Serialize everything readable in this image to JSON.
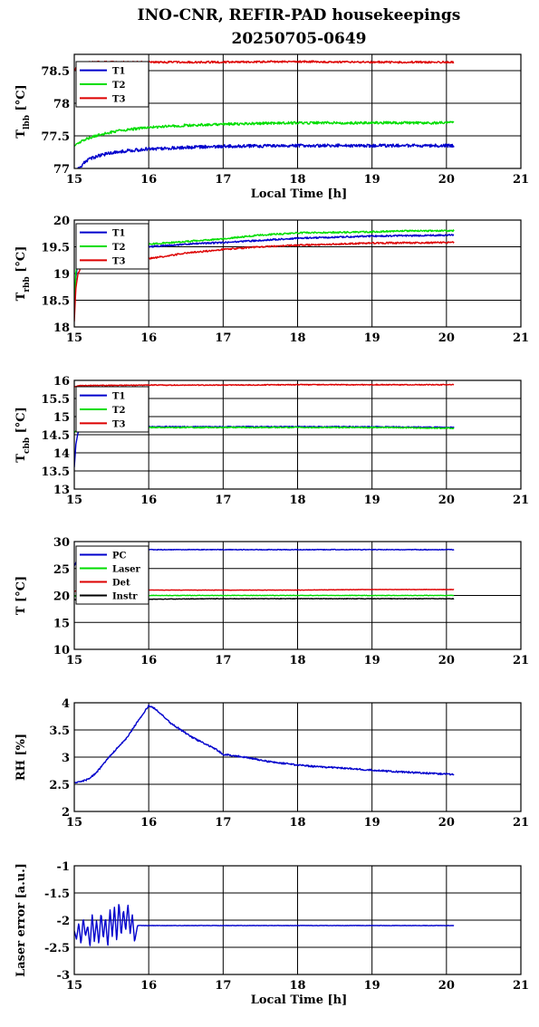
{
  "figure": {
    "title": [
      "INO-CNR, REFIR-PAD housekeepings",
      "20250705-0649"
    ]
  },
  "colors": {
    "blue": "#0000cc",
    "green": "#00dd00",
    "red": "#dd0000",
    "black": "#000000"
  },
  "chart_data": [
    {
      "type": "line",
      "ylabel": "T_lbb [°C]",
      "xlabel": "Local Time [h]",
      "xlim": [
        15,
        21
      ],
      "ylim": [
        77,
        78.75
      ],
      "xticks": [
        "15",
        "16",
        "17",
        "18",
        "19",
        "20",
        "21"
      ],
      "yticks": [
        "77",
        "77.5",
        "78",
        "78.5"
      ],
      "ytick_values": [
        77,
        77.5,
        78,
        78.5
      ],
      "grid": true,
      "legend": "top-left",
      "series": [
        {
          "name": "T1",
          "color": "#0000cc",
          "noise": 0.025,
          "x": [
            15.0,
            15.1,
            15.2,
            15.35,
            15.5,
            15.7,
            16.0,
            16.5,
            17.0,
            18.0,
            19.0,
            20.1
          ],
          "y": [
            76.95,
            77.05,
            77.15,
            77.2,
            77.24,
            77.27,
            77.3,
            77.32,
            77.34,
            77.35,
            77.35,
            77.35
          ]
        },
        {
          "name": "T2",
          "color": "#00dd00",
          "noise": 0.02,
          "x": [
            15.0,
            15.15,
            15.35,
            15.6,
            16.0,
            16.5,
            17.0,
            18.0,
            19.0,
            20.1
          ],
          "y": [
            77.35,
            77.45,
            77.52,
            77.58,
            77.63,
            77.66,
            77.68,
            77.7,
            77.7,
            77.7
          ]
        },
        {
          "name": "T3",
          "color": "#dd0000",
          "noise": 0.015,
          "x": [
            15.0,
            15.05,
            15.3,
            16.0,
            17.0,
            18.0,
            19.0,
            20.1
          ],
          "y": [
            78.5,
            78.62,
            78.63,
            78.63,
            78.63,
            78.64,
            78.63,
            78.63
          ]
        }
      ]
    },
    {
      "type": "line",
      "ylabel": "T_rbb [°C]",
      "xlabel": "",
      "xlim": [
        15,
        21
      ],
      "ylim": [
        18,
        20
      ],
      "xticks": [
        "15",
        "16",
        "17",
        "18",
        "19",
        "20",
        "21"
      ],
      "yticks": [
        "18",
        "18.5",
        "19",
        "19.5",
        "20"
      ],
      "ytick_values": [
        18,
        18.5,
        19,
        19.5,
        20
      ],
      "grid": true,
      "legend": "top-left",
      "series": [
        {
          "name": "T1",
          "color": "#0000cc",
          "noise": 0.015,
          "x": [
            15.0,
            15.02,
            15.05,
            15.1,
            15.2,
            15.5,
            16.0,
            16.5,
            17.0,
            17.5,
            18.0,
            19.0,
            20.1
          ],
          "y": [
            18.3,
            18.9,
            19.25,
            19.38,
            19.42,
            19.45,
            19.5,
            19.55,
            19.58,
            19.62,
            19.66,
            19.7,
            19.72
          ]
        },
        {
          "name": "T2",
          "color": "#00dd00",
          "noise": 0.015,
          "x": [
            15.0,
            15.02,
            15.05,
            15.1,
            15.2,
            15.5,
            16.0,
            16.5,
            17.0,
            17.5,
            18.0,
            19.0,
            19.5,
            20.1
          ],
          "y": [
            18.3,
            19.0,
            19.3,
            19.4,
            19.45,
            19.48,
            19.55,
            19.6,
            19.65,
            19.72,
            19.76,
            19.78,
            19.8,
            19.8
          ]
        },
        {
          "name": "T3",
          "color": "#dd0000",
          "noise": 0.015,
          "x": [
            15.0,
            15.02,
            15.05,
            15.1,
            15.2,
            15.5,
            15.9,
            16.0,
            16.5,
            17.0,
            17.5,
            18.0,
            19.0,
            20.1
          ],
          "y": [
            18.1,
            18.7,
            19.0,
            19.15,
            19.2,
            19.25,
            19.2,
            19.28,
            19.38,
            19.45,
            19.5,
            19.53,
            19.57,
            19.58
          ]
        }
      ]
    },
    {
      "type": "line",
      "ylabel": "T_cbb [°C]",
      "xlabel": "",
      "xlim": [
        15,
        21
      ],
      "ylim": [
        13,
        16
      ],
      "xticks": [
        "15",
        "16",
        "17",
        "18",
        "19",
        "20",
        "21"
      ],
      "yticks": [
        "13",
        "13.5",
        "14",
        "14.5",
        "15",
        "15.5",
        "16"
      ],
      "ytick_values": [
        13,
        13.5,
        14,
        14.5,
        15,
        15.5,
        16
      ],
      "grid": true,
      "legend": "top-left",
      "series": [
        {
          "name": "T1",
          "color": "#0000cc",
          "noise": 0.015,
          "x": [
            15.0,
            15.02,
            15.05,
            15.1,
            15.3,
            16.0,
            17.0,
            18.0,
            19.0,
            20.1
          ],
          "y": [
            13.6,
            14.2,
            14.55,
            14.68,
            14.7,
            14.72,
            14.72,
            14.72,
            14.72,
            14.7
          ]
        },
        {
          "name": "T2",
          "color": "#00dd00",
          "noise": 0.015,
          "x": [
            15.0,
            15.05,
            15.1,
            15.3,
            16.0,
            17.0,
            18.0,
            19.0,
            20.1
          ],
          "y": [
            14.55,
            14.65,
            14.7,
            14.7,
            14.7,
            14.7,
            14.7,
            14.7,
            14.68
          ]
        },
        {
          "name": "T3",
          "color": "#dd0000",
          "noise": 0.012,
          "x": [
            15.0,
            15.1,
            15.5,
            16.0,
            17.0,
            18.0,
            19.0,
            20.1
          ],
          "y": [
            15.82,
            15.86,
            15.86,
            15.87,
            15.87,
            15.88,
            15.88,
            15.88
          ]
        }
      ]
    },
    {
      "type": "line",
      "ylabel": "T [°C]",
      "xlabel": "",
      "xlim": [
        15,
        21
      ],
      "ylim": [
        10,
        30
      ],
      "xticks": [
        "15",
        "16",
        "17",
        "18",
        "19",
        "20",
        "21"
      ],
      "yticks": [
        "10",
        "15",
        "20",
        "25",
        "30"
      ],
      "ytick_values": [
        10,
        15,
        20,
        25,
        30
      ],
      "grid": true,
      "legend": "top-left",
      "series": [
        {
          "name": "PC",
          "color": "#0000cc",
          "noise": 0.06,
          "x": [
            15.0,
            15.05,
            15.2,
            15.5,
            16.0,
            17.0,
            18.0,
            19.0,
            20.1
          ],
          "y": [
            25.5,
            27.0,
            28.0,
            28.4,
            28.5,
            28.5,
            28.5,
            28.5,
            28.5
          ]
        },
        {
          "name": "Laser",
          "color": "#00dd00",
          "noise": 0.05,
          "x": [
            15.0,
            15.5,
            16.0,
            17.0,
            18.0,
            19.0,
            20.1
          ],
          "y": [
            19.9,
            20.0,
            20.0,
            20.0,
            20.0,
            20.0,
            20.0
          ]
        },
        {
          "name": "Det",
          "color": "#dd0000",
          "noise": 0.04,
          "x": [
            15.0,
            15.5,
            16.0,
            17.0,
            18.0,
            19.0,
            20.1
          ],
          "y": [
            20.8,
            20.9,
            21.0,
            21.0,
            21.0,
            21.1,
            21.1
          ]
        },
        {
          "name": "Instr",
          "color": "#000000",
          "noise": 0.05,
          "x": [
            15.0,
            15.5,
            16.0,
            17.0,
            18.0,
            19.0,
            20.1
          ],
          "y": [
            19.2,
            19.3,
            19.3,
            19.4,
            19.4,
            19.4,
            19.4
          ]
        }
      ]
    },
    {
      "type": "line",
      "ylabel": "RH [%]",
      "xlabel": "",
      "xlim": [
        15,
        21
      ],
      "ylim": [
        2,
        4
      ],
      "xticks": [
        "15",
        "16",
        "17",
        "18",
        "19",
        "20",
        "21"
      ],
      "yticks": [
        "2",
        "2.5",
        "3",
        "3.5",
        "4"
      ],
      "ytick_values": [
        2,
        2.5,
        3,
        3.5,
        4
      ],
      "grid": true,
      "legend": "none",
      "series": [
        {
          "color": "#0000cc",
          "noise": 0.015,
          "x": [
            15.0,
            15.1,
            15.2,
            15.3,
            15.5,
            15.7,
            15.85,
            16.0,
            16.1,
            16.3,
            16.6,
            16.9,
            17.0,
            17.3,
            17.6,
            17.9,
            18.2,
            18.6,
            19.0,
            19.5,
            20.1
          ],
          "y": [
            2.53,
            2.55,
            2.6,
            2.72,
            3.05,
            3.35,
            3.65,
            3.95,
            3.88,
            3.62,
            3.35,
            3.15,
            3.05,
            3.0,
            2.92,
            2.87,
            2.83,
            2.8,
            2.76,
            2.72,
            2.68
          ]
        }
      ]
    },
    {
      "type": "line",
      "ylabel": "Laser error [a.u.]",
      "xlabel": "Local Time [h]",
      "xlim": [
        15,
        21
      ],
      "ylim": [
        -3,
        -1
      ],
      "xticks": [
        "15",
        "16",
        "17",
        "18",
        "19",
        "20",
        "21"
      ],
      "yticks": [
        "-3",
        "-2.5",
        "-2",
        "-1.5",
        "-1"
      ],
      "ytick_values": [
        -3,
        -2.5,
        -2,
        -1.5,
        -1
      ],
      "grid": true,
      "legend": "none",
      "series": [
        {
          "color": "#0000cc",
          "noise": 0.004,
          "x": [
            15.0,
            15.03,
            15.06,
            15.09,
            15.12,
            15.15,
            15.18,
            15.21,
            15.24,
            15.27,
            15.3,
            15.33,
            15.36,
            15.39,
            15.42,
            15.45,
            15.48,
            15.51,
            15.54,
            15.57,
            15.6,
            15.63,
            15.66,
            15.69,
            15.72,
            15.75,
            15.78,
            15.81,
            15.85,
            16.0,
            17.0,
            18.0,
            19.0,
            20.1
          ],
          "y": [
            -2.2,
            -2.35,
            -2.05,
            -2.45,
            -1.95,
            -2.3,
            -2.1,
            -2.5,
            -1.9,
            -2.4,
            -2.0,
            -2.45,
            -1.85,
            -2.35,
            -1.95,
            -2.5,
            -1.8,
            -2.3,
            -1.75,
            -2.4,
            -1.65,
            -2.3,
            -1.8,
            -2.2,
            -1.7,
            -2.25,
            -1.9,
            -2.4,
            -2.1,
            -2.1,
            -2.1,
            -2.1,
            -2.1,
            -2.1
          ]
        }
      ]
    }
  ]
}
